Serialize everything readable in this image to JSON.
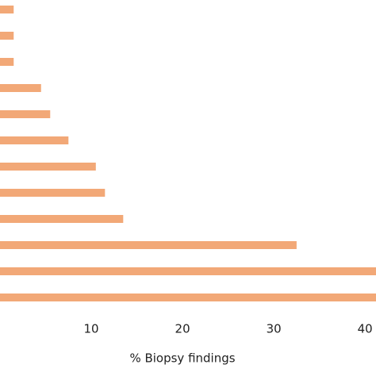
{
  "chart_data": {
    "type": "bar",
    "orientation": "horizontal",
    "x_label": "% Biopsy findings",
    "categories": [
      null,
      null,
      null,
      null,
      null,
      null,
      null,
      null,
      null,
      null,
      null,
      null
    ],
    "values": [
      1.5,
      1.5,
      1.5,
      4.5,
      5.5,
      7.5,
      10.5,
      11.5,
      13.5,
      32.5,
      42,
      42
    ],
    "color": "#f2a877",
    "xlim": [
      0,
      41.2
    ],
    "xticks": [
      10,
      20,
      30,
      40
    ],
    "grid": false
  }
}
